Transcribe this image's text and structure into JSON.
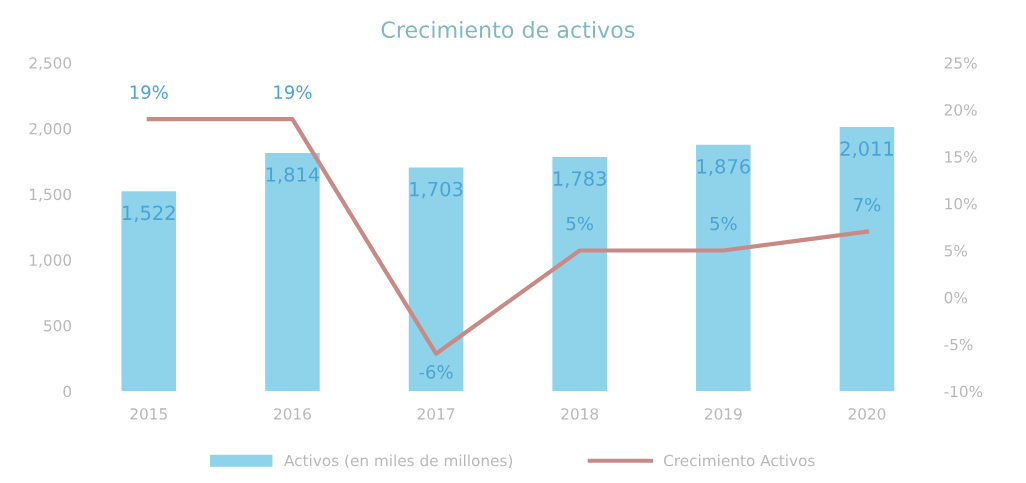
{
  "chart_data": {
    "type": "bar",
    "title": "Crecimiento de activos",
    "categories": [
      "2015",
      "2016",
      "2017",
      "2018",
      "2019",
      "2020"
    ],
    "series": [
      {
        "name": "Activos (en miles de millones)",
        "color": "#8fd3ea",
        "values": [
          1522,
          1814,
          1703,
          1783,
          1876,
          2011
        ],
        "value_labels": [
          "1,522",
          "1,814",
          "1,703",
          "1,783",
          "1,876",
          "2,011"
        ]
      },
      {
        "name": "Crecimiento Activos",
        "type": "line",
        "axis": "y2",
        "color": "#c98a86",
        "values": [
          19,
          19,
          -6,
          5,
          5,
          7
        ],
        "value_labels": [
          "19%",
          "19%",
          "-6%",
          "5%",
          "5%",
          "7%"
        ]
      }
    ],
    "ylim": [
      0,
      2500
    ],
    "yticks": [
      {
        "value": 0,
        "label": "0"
      },
      {
        "value": 500,
        "label": "500"
      },
      {
        "value": 1000,
        "label": "1,000"
      },
      {
        "value": 1500,
        "label": "1,500"
      },
      {
        "value": 2000,
        "label": "2,000"
      },
      {
        "value": 2500,
        "label": "2,500"
      }
    ],
    "y2lim": [
      -10,
      25
    ],
    "y2ticks": [
      {
        "value": -10,
        "label": "-10%"
      },
      {
        "value": -5,
        "label": "-5%"
      },
      {
        "value": 0,
        "label": "0%"
      },
      {
        "value": 5,
        "label": "5%"
      },
      {
        "value": 10,
        "label": "10%"
      },
      {
        "value": 15,
        "label": "15%"
      },
      {
        "value": 20,
        "label": "20%"
      },
      {
        "value": 25,
        "label": "25%"
      }
    ],
    "legend": "bottom",
    "grid": false
  }
}
